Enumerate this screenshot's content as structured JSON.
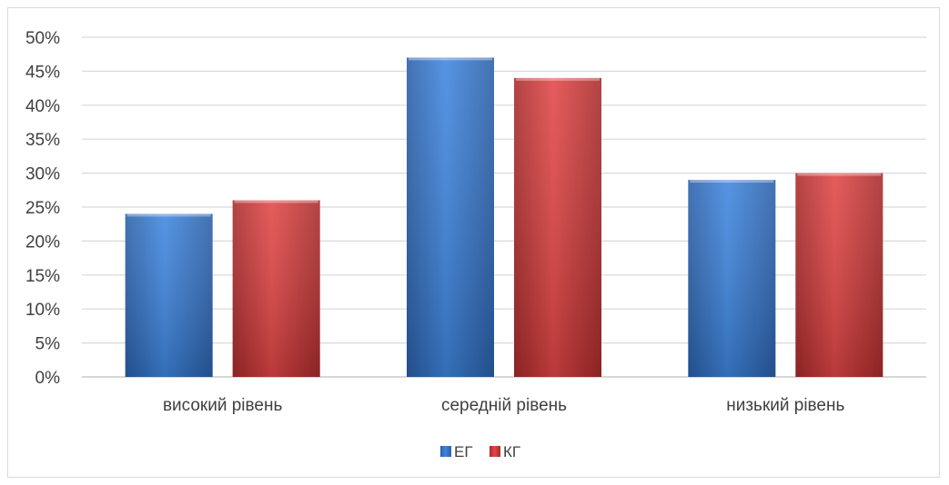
{
  "chart_data": {
    "type": "bar",
    "categories": [
      "високий рівень",
      "середній рівень",
      "низький рівень"
    ],
    "series": [
      {
        "name": "ЕГ",
        "color": "#3a7bd5",
        "values": [
          24,
          47,
          29
        ]
      },
      {
        "name": "КГ",
        "color": "#d93c3c",
        "values": [
          26,
          44,
          30
        ]
      }
    ],
    "ylim": [
      0,
      50
    ],
    "yticks": [
      "0%",
      "5%",
      "10%",
      "15%",
      "20%",
      "25%",
      "30%",
      "35%",
      "40%",
      "45%",
      "50%"
    ],
    "unit": "%",
    "grid": true,
    "legend_position": "bottom"
  }
}
